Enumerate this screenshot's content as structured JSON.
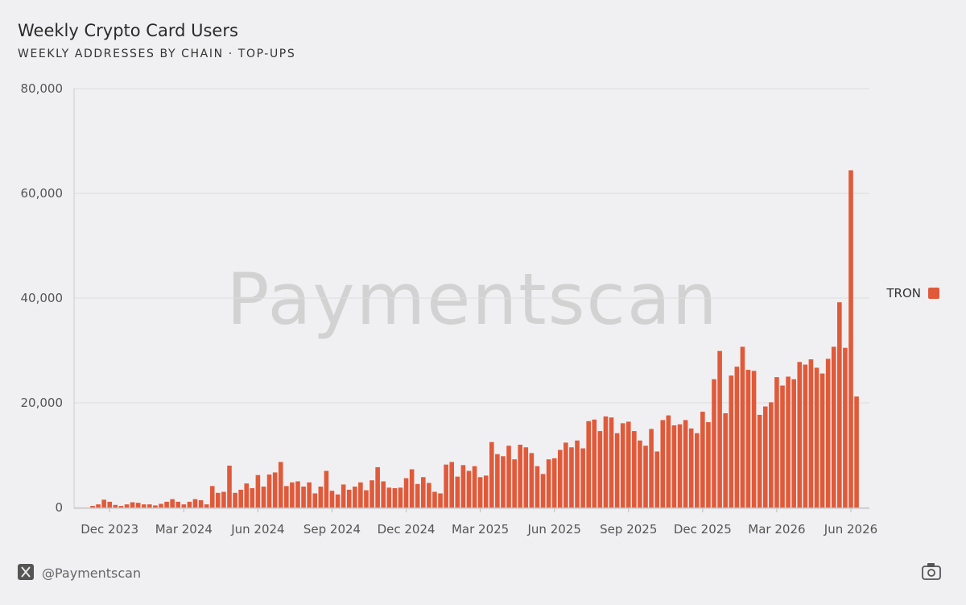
{
  "chart_data": {
    "type": "bar",
    "title": "Weekly Crypto Card Users",
    "subtitle": "WEEKLY ADDRESSES BY CHAIN · TOP-UPS",
    "watermark": "Paymentscan",
    "footer": "@Paymentscan",
    "categories": [
      null,
      null,
      null,
      "Dec 2023",
      null,
      null,
      null,
      null,
      null,
      null,
      null,
      null,
      null,
      null,
      null,
      null,
      "Mar 2024",
      null,
      null,
      null,
      null,
      null,
      null,
      null,
      null,
      null,
      null,
      null,
      null,
      "Jun 2024",
      null,
      null,
      null,
      null,
      null,
      null,
      null,
      null,
      null,
      null,
      null,
      null,
      "Sep 2024",
      null,
      null,
      null,
      null,
      null,
      null,
      null,
      null,
      null,
      null,
      null,
      null,
      "Dec 2024",
      null,
      null,
      null,
      null,
      null,
      null,
      null,
      null,
      null,
      null,
      null,
      null,
      "Mar 2025",
      null,
      null,
      null,
      null,
      null,
      null,
      null,
      null,
      null,
      null,
      null,
      null,
      "Jun 2025",
      null,
      null,
      null,
      null,
      null,
      null,
      null,
      null,
      null,
      null,
      null,
      null,
      "Sep 2025",
      null,
      null,
      null,
      null,
      null,
      null,
      null,
      null,
      null,
      null,
      null,
      null,
      "Dec 2025",
      null,
      null,
      null,
      null,
      null,
      null,
      null,
      null,
      null,
      null,
      null,
      null,
      "Mar 2026",
      null,
      null,
      null,
      null,
      null,
      null,
      null,
      null,
      null,
      null,
      null,
      null,
      "Jun 2026",
      null
    ],
    "series": [
      {
        "name": "TRON",
        "color": "#e05a3a",
        "values": [
          300,
          600,
          1500,
          1100,
          500,
          300,
          600,
          1000,
          900,
          600,
          600,
          400,
          700,
          1100,
          1600,
          1100,
          600,
          1100,
          1600,
          1400,
          600,
          4100,
          2800,
          3000,
          8000,
          2800,
          3400,
          4600,
          3700,
          6200,
          4000,
          6300,
          6700,
          8700,
          4100,
          4800,
          5000,
          4000,
          4800,
          2700,
          4000,
          7000,
          3200,
          2500,
          4400,
          3400,
          4000,
          4800,
          3300,
          5200,
          7700,
          5000,
          3800,
          3700,
          3800,
          5600,
          7300,
          4500,
          5800,
          4700,
          3000,
          2700,
          8200,
          8700,
          5900,
          8100,
          7000,
          7900,
          5800,
          6100,
          12500,
          10200,
          9800,
          11800,
          9200,
          12000,
          11500,
          10400,
          7900,
          6400,
          9200,
          9400,
          11000,
          12400,
          11500,
          12800,
          11300,
          16500,
          16800,
          14600,
          17400,
          17200,
          14200,
          16100,
          16400,
          14600,
          12800,
          11800,
          15000,
          10700,
          16700,
          17600,
          15700,
          15900,
          16700,
          15100,
          14200,
          18300,
          16300,
          24500,
          29900,
          18000,
          25200,
          26900,
          30700,
          26300,
          26100,
          17700,
          19300,
          20100,
          24900,
          23300,
          25000,
          24500,
          27800,
          27300,
          28300,
          26700,
          25600,
          28400,
          30700,
          39200,
          30500,
          64400,
          21200
        ]
      }
    ],
    "ylim": [
      0,
      80000
    ],
    "yticks": [
      0,
      {
        "value": 20000,
        "label": "20,000"
      },
      {
        "value": 40000,
        "label": "40,000"
      },
      {
        "value": 60000,
        "label": "60,000"
      },
      {
        "value": 80000,
        "label": "80,000"
      }
    ],
    "grid": true,
    "legend": "right"
  }
}
